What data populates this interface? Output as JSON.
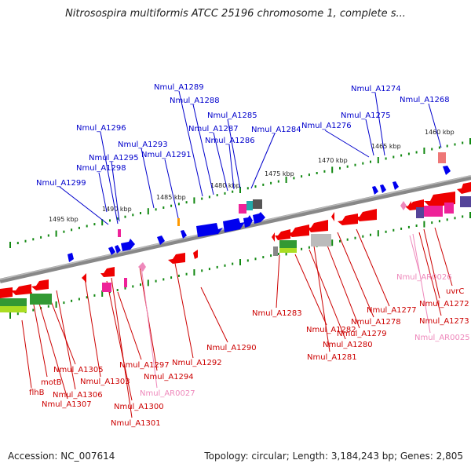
{
  "title": "Nitrosospira multiformis ATCC 25196 chromosome 1, complete s...",
  "footer": {
    "accession": "Accession: NC_007614",
    "summary": "Topology: circular; Length: 3,184,243 bp; Genes: 2,805"
  },
  "colors": {
    "top_label": "#0000cc",
    "bottom_label": "#cc0000",
    "rna_label": "#ee88bb",
    "forward_gene": "#0000ee",
    "reverse_gene": "#ee0000",
    "backbone": "#888888",
    "tick": "#118811"
  },
  "ticks": [
    "1460 kbp",
    "1465 kbp",
    "1470 kbp",
    "1475 kbp",
    "1480 kbp",
    "1485 kbp",
    "1490 kbp",
    "1495 kbp"
  ],
  "top_labels": [
    "Nmul_A1289",
    "Nmul_A1288",
    "Nmul_A1274",
    "Nmul_A1268",
    "Nmul_A1285",
    "Nmul_A1275",
    "Nmul_A1296",
    "Nmul_A1287",
    "Nmul_A1284",
    "Nmul_A1276",
    "Nmul_A1286",
    "Nmul_A1293",
    "Nmul_A1295",
    "Nmul_A1291",
    "Nmul_A1298",
    "Nmul_A1299"
  ],
  "bottom_labels": [
    "Nmul_AR0026",
    "uvrC",
    "Nmul_A1272",
    "Nmul_A1277",
    "Nmul_A1283",
    "Nmul_A1273",
    "Nmul_A1278",
    "Nmul_AR0025",
    "Nmul_A1282",
    "Nmul_A1279",
    "Nmul_A1280",
    "Nmul_A1290",
    "Nmul_A1281",
    "Nmul_A1292",
    "Nmul_A1305",
    "Nmul_A1297",
    "Nmul_A1294",
    "motB",
    "Nmul_A1303",
    "Nmul_A1306",
    "flhB",
    "Nmul_AR0027",
    "Nmul_A1307",
    "Nmul_A1300",
    "Nmul_A1301"
  ]
}
